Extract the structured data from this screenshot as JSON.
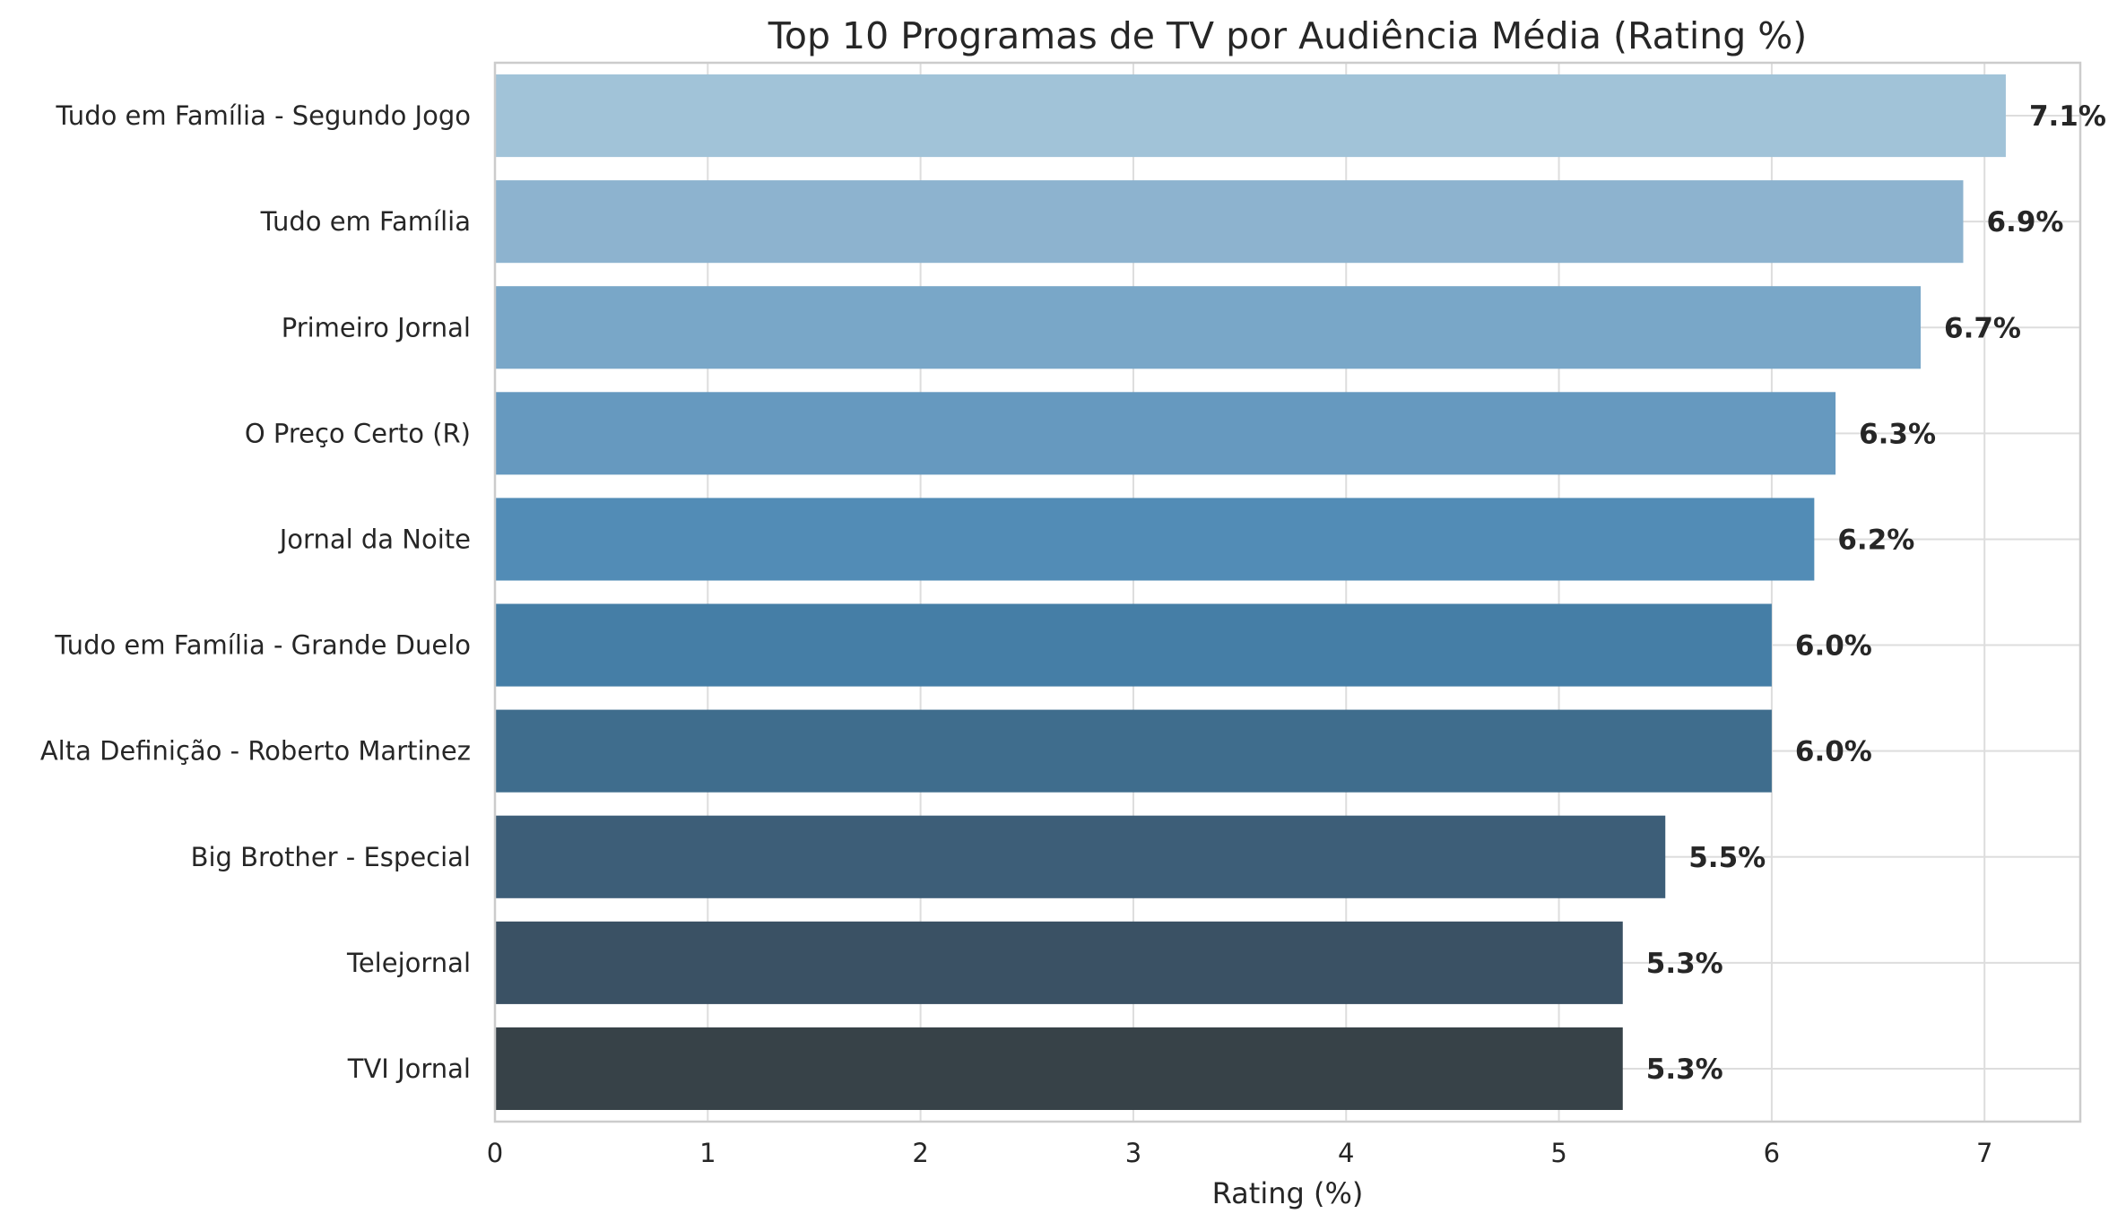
{
  "chart_data": {
    "type": "bar",
    "orientation": "horizontal",
    "title": "Top 10 Programas de TV por Audiência Média (Rating %)",
    "xlabel": "Rating (%)",
    "ylabel": "",
    "xlim": [
      0,
      7.45
    ],
    "xticks": [
      "0",
      "1",
      "2",
      "3",
      "4",
      "5",
      "6",
      "7"
    ],
    "grid": true,
    "categories": [
      "Tudo em Família - Segundo Jogo",
      "Tudo em Família",
      "Primeiro Jornal",
      "O Preço Certo (R)",
      "Jornal da Noite",
      "Tudo em Família - Grande Duelo",
      "Alta Definição - Roberto Martinez",
      "Big Brother - Especial",
      "Telejornal",
      "TVI Jornal"
    ],
    "values": [
      7.1,
      6.9,
      6.7,
      6.3,
      6.2,
      6.0,
      6.0,
      5.5,
      5.3,
      5.3
    ],
    "data_labels": [
      "7.1%",
      "6.9%",
      "6.7%",
      "6.3%",
      "6.2%",
      "6.0%",
      "6.0%",
      "5.5%",
      "5.3%",
      "5.3%"
    ],
    "colors": [
      "#a1c3d8",
      "#8db3cf",
      "#79a7c8",
      "#6699bf",
      "#528cb6",
      "#457ea6",
      "#3f6d8d",
      "#3d5e78",
      "#3a5164",
      "#374248"
    ]
  },
  "style": {
    "grid_color": "#dddddd",
    "axis_color": "#cccccc",
    "text_color": "#262626"
  }
}
